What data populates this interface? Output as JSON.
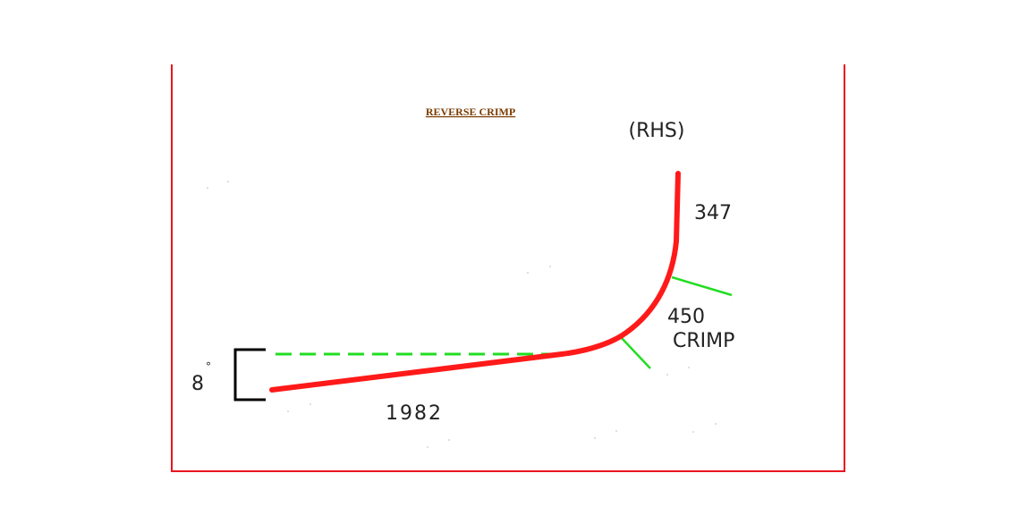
{
  "title": "REVERSE CRIMP",
  "side_label": "(RHS)",
  "dimensions": {
    "vertical_leg": "347",
    "crimp_value": "450",
    "crimp_word": "CRIMP",
    "base_leg": "1982",
    "angle_value": "8",
    "angle_unit": "°"
  },
  "colors": {
    "frame": "#e8151f",
    "profile_line": "#ff1a1a",
    "guide_lines": "#22dd22",
    "angle_bracket": "#000000",
    "title": "#7a3b00",
    "labels": "#222222"
  }
}
